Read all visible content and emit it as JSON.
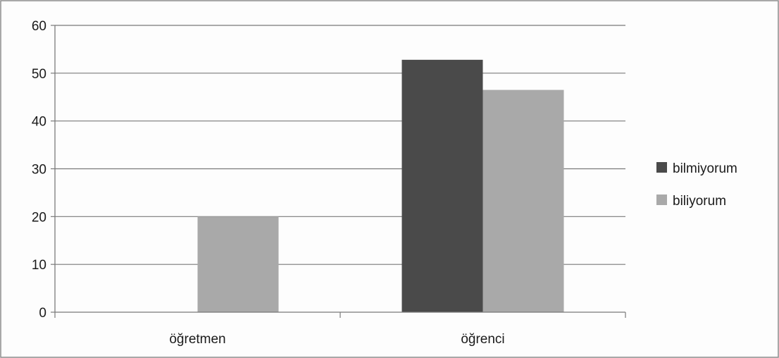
{
  "chart_data": {
    "type": "bar",
    "categories": [
      "öğretmen",
      "öğrenci"
    ],
    "series": [
      {
        "name": "bilmiyorum",
        "values": [
          0,
          52.8
        ],
        "color": "#4a4a4a"
      },
      {
        "name": "biliyorum",
        "values": [
          20,
          46.5
        ],
        "color": "#a9a9a9"
      }
    ],
    "ylim": [
      0,
      60
    ],
    "yticks": [
      0,
      10,
      20,
      30,
      40,
      50,
      60
    ],
    "ytick_labels": [
      "0",
      "10",
      "20",
      "30",
      "40",
      "50",
      "60"
    ],
    "grid": true,
    "legend_position": "right",
    "title": "",
    "xlabel": "",
    "ylabel": ""
  }
}
